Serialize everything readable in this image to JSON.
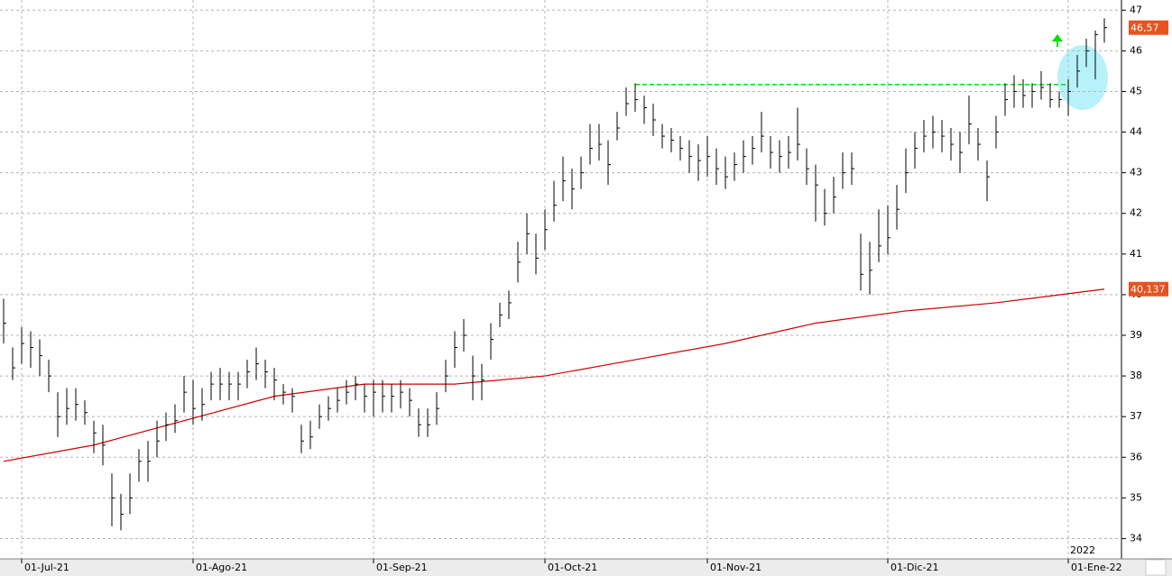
{
  "chart_data": {
    "type": "ohlc",
    "categories": [
      null,
      null,
      "01-Jul-21",
      null,
      null,
      null,
      null,
      null,
      null,
      null,
      null,
      null,
      null,
      null,
      null,
      null,
      null,
      null,
      null,
      null,
      null,
      "01-Ago-21",
      null,
      null,
      null,
      null,
      null,
      null,
      null,
      null,
      null,
      null,
      null,
      null,
      null,
      null,
      null,
      null,
      null,
      null,
      null,
      "01-Sep-21",
      null,
      null,
      null,
      null,
      null,
      null,
      null,
      null,
      null,
      null,
      null,
      null,
      null,
      null,
      null,
      null,
      null,
      null,
      "01-Oct-21",
      null,
      null,
      null,
      null,
      null,
      null,
      null,
      null,
      null,
      null,
      null,
      null,
      null,
      null,
      null,
      null,
      null,
      "01-Nov-21",
      null,
      null,
      null,
      null,
      null,
      null,
      null,
      null,
      null,
      null,
      null,
      null,
      null,
      null,
      null,
      null,
      null,
      null,
      null,
      "01-Dic-21",
      null,
      null,
      null,
      null,
      null,
      null,
      null,
      null,
      null,
      null,
      null,
      null,
      null,
      null,
      null,
      null,
      null,
      null,
      null,
      "01-Ene-22",
      null,
      null,
      null,
      null
    ],
    "high": [
      39.9,
      38.7,
      39.2,
      39.1,
      38.9,
      38.4,
      37.6,
      37.7,
      37.7,
      37.4,
      36.9,
      36.8,
      35.6,
      35.1,
      35.6,
      36.2,
      36.4,
      36.9,
      37.1,
      37.3,
      38.0,
      37.9,
      37.7,
      38.1,
      38.2,
      38.1,
      38.1,
      38.4,
      38.7,
      38.4,
      38.2,
      37.8,
      37.7,
      36.8,
      36.9,
      37.3,
      37.5,
      37.7,
      37.9,
      38.0,
      37.8,
      37.9,
      37.9,
      37.8,
      37.9,
      37.7,
      37.2,
      37.2,
      37.6,
      38.4,
      39.1,
      39.4,
      38.5,
      38.3,
      39.3,
      39.8,
      40.1,
      41.3,
      42.0,
      41.5,
      42.1,
      42.8,
      43.4,
      43.1,
      43.4,
      44.2,
      44.2,
      43.8,
      44.5,
      45.1,
      45.2,
      44.9,
      44.7,
      44.2,
      44.1,
      43.9,
      43.8,
      43.7,
      43.9,
      43.6,
      43.4,
      43.5,
      43.8,
      43.9,
      44.5,
      43.9,
      43.8,
      43.9,
      44.6,
      43.6,
      43.2,
      42.6,
      42.9,
      43.5,
      43.5,
      41.5,
      41.3,
      42.1,
      42.2,
      42.7,
      43.6,
      44.0,
      44.3,
      44.4,
      44.3,
      44.1,
      44.0,
      44.9,
      44.1,
      43.3,
      44.4,
      45.2,
      45.4,
      45.3,
      45.2,
      45.5,
      45.2,
      45.0,
      45.3,
      45.9,
      46.3,
      46.5,
      46.8
    ],
    "low": [
      38.8,
      37.9,
      38.3,
      38.2,
      38.0,
      37.6,
      36.5,
      36.8,
      36.9,
      36.8,
      36.1,
      35.8,
      34.3,
      34.2,
      34.6,
      35.4,
      35.4,
      36.0,
      36.4,
      36.6,
      37.1,
      36.8,
      36.9,
      37.4,
      37.4,
      37.4,
      37.4,
      37.7,
      37.9,
      37.7,
      37.4,
      37.3,
      37.1,
      36.1,
      36.2,
      36.7,
      36.9,
      37.1,
      37.3,
      37.4,
      37.1,
      37.0,
      37.1,
      37.1,
      37.2,
      37.0,
      36.5,
      36.5,
      36.8,
      37.6,
      38.2,
      38.6,
      37.4,
      37.4,
      38.4,
      39.2,
      39.4,
      40.3,
      41.0,
      40.5,
      41.1,
      41.8,
      42.3,
      42.1,
      42.6,
      43.2,
      43.3,
      42.7,
      43.8,
      44.4,
      44.5,
      44.2,
      43.9,
      43.6,
      43.5,
      43.3,
      43.0,
      42.8,
      42.9,
      42.7,
      42.6,
      42.8,
      43.0,
      43.2,
      43.5,
      43.1,
      43.0,
      43.1,
      43.3,
      42.7,
      41.8,
      41.7,
      42.0,
      42.6,
      42.7,
      40.1,
      40.0,
      40.8,
      41.0,
      41.6,
      42.5,
      43.1,
      43.5,
      43.6,
      43.5,
      43.3,
      43.0,
      43.7,
      43.3,
      42.3,
      43.6,
      44.4,
      44.6,
      44.6,
      44.6,
      44.8,
      44.6,
      44.6,
      44.4,
      45.1,
      45.6,
      45.3,
      46.2
    ],
    "close": [
      39.3,
      38.2,
      38.8,
      38.7,
      38.5,
      38.0,
      37.0,
      37.2,
      37.3,
      37.1,
      36.6,
      36.3,
      35.0,
      34.6,
      35.0,
      35.9,
      35.9,
      36.4,
      36.8,
      36.9,
      37.6,
      37.2,
      37.3,
      37.8,
      37.8,
      37.8,
      37.8,
      38.1,
      38.3,
      38.1,
      37.9,
      37.6,
      37.5,
      36.4,
      36.5,
      37.0,
      37.2,
      37.4,
      37.6,
      37.8,
      37.5,
      37.6,
      37.5,
      37.5,
      37.6,
      37.4,
      36.8,
      36.8,
      37.2,
      38.0,
      38.7,
      39.0,
      38.0,
      37.9,
      38.9,
      39.5,
      39.8,
      40.8,
      41.5,
      40.9,
      41.6,
      42.2,
      42.8,
      42.6,
      43.0,
      43.6,
      43.7,
      43.2,
      44.1,
      44.7,
      44.8,
      44.6,
      44.3,
      43.9,
      43.8,
      43.6,
      43.4,
      43.3,
      43.4,
      43.1,
      42.9,
      43.2,
      43.4,
      43.6,
      43.9,
      43.5,
      43.4,
      43.5,
      43.7,
      43.1,
      42.7,
      42.0,
      42.4,
      43.0,
      43.1,
      40.5,
      40.6,
      41.2,
      41.4,
      42.1,
      43.0,
      43.6,
      43.9,
      44.0,
      43.9,
      43.7,
      43.5,
      44.2,
      43.7,
      42.9,
      44.0,
      44.8,
      45.0,
      44.9,
      45.0,
      45.1,
      44.8,
      44.8,
      45.0,
      45.5,
      46.0,
      46.4,
      46.57
    ],
    "color": "#000000",
    "ma": {
      "color": "#cc0000",
      "x": [
        0,
        10,
        20,
        30,
        40,
        50,
        60,
        70,
        80,
        90,
        100,
        110,
        122
      ],
      "values": [
        35.9,
        36.3,
        36.9,
        37.5,
        37.8,
        37.8,
        38.0,
        38.4,
        38.8,
        39.3,
        39.6,
        39.8,
        40.137
      ]
    },
    "price_label": {
      "value": 46.57,
      "label": "46,57"
    },
    "ma_label": {
      "value": 40.137,
      "label": "40,137"
    },
    "resistance": {
      "value": 45.17,
      "from": 70,
      "to": 118,
      "color": "#00dd00"
    },
    "year_label": "2022",
    "ylim": [
      33.5,
      47.25
    ],
    "yticks": [
      34,
      35,
      36,
      37,
      38,
      39,
      40,
      41,
      42,
      43,
      44,
      45,
      46,
      47
    ],
    "grid": true
  }
}
